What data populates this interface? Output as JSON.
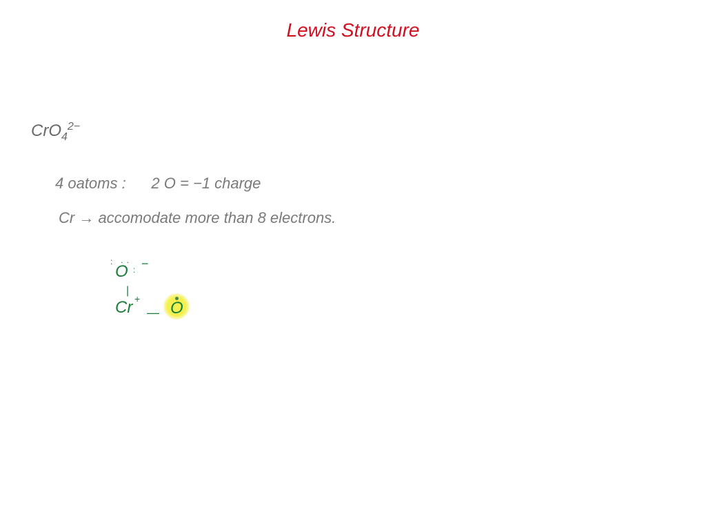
{
  "title": "Lewis Structure",
  "formula": {
    "base": "CrO",
    "sub": "4",
    "sup": "2−"
  },
  "line1_part1": "4 oatoms :",
  "line1_part2": "2 O = −1 charge",
  "line2": "Cr → accomodate more than 8 electrons.",
  "diagram": {
    "o_top": "O",
    "minus": "−",
    "bond_v": "|",
    "cr": "Cr",
    "plus": "+",
    "bond_h": "—",
    "o_right": "O"
  },
  "colors": {
    "title": "#d01020",
    "body_text": "#7a7a7a",
    "diagram": "#1a7f3a",
    "highlight": "#f5f050",
    "background": "#ffffff"
  },
  "typography": {
    "title_fontsize": 28,
    "body_fontsize": 22,
    "diagram_fontsize": 24,
    "font_family": "cursive-handwritten"
  }
}
